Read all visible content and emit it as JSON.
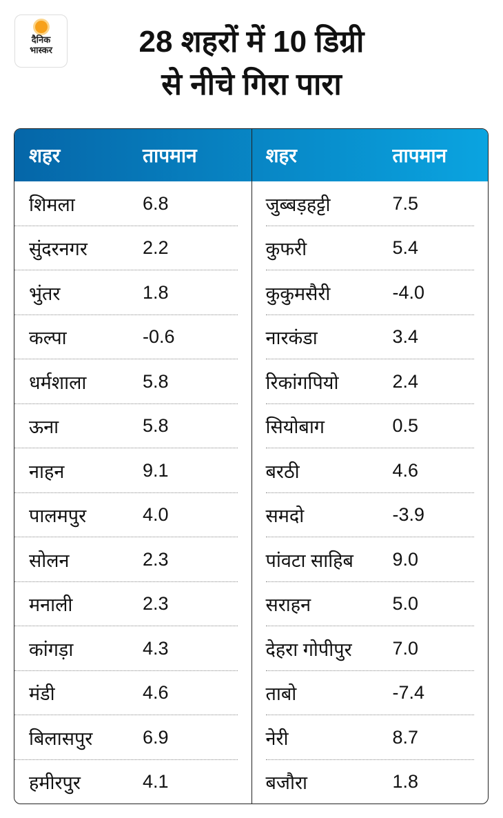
{
  "logo": {
    "line1": "दैनिक",
    "line2": "भास्कर"
  },
  "title": {
    "line1": "28 शहरों में 10 डिग्री",
    "line2": "से नीचे गिरा पारा"
  },
  "colors": {
    "header_start": "#0566a8",
    "header_end": "#0aa4e0",
    "sun": "#f7a11a"
  },
  "chart_data": {
    "type": "table",
    "columns": [
      "शहर",
      "तापमान"
    ],
    "left": [
      [
        "शिमला",
        "6.8"
      ],
      [
        "सुंदरनगर",
        "2.2"
      ],
      [
        "भुंतर",
        "1.8"
      ],
      [
        "कल्पा",
        "-0.6"
      ],
      [
        "धर्मशाला",
        "5.8"
      ],
      [
        "ऊना",
        "5.8"
      ],
      [
        "नाहन",
        "9.1"
      ],
      [
        "पालमपुर",
        "4.0"
      ],
      [
        "सोलन",
        "2.3"
      ],
      [
        "मनाली",
        "2.3"
      ],
      [
        "कांगड़ा",
        "4.3"
      ],
      [
        "मंडी",
        "4.6"
      ],
      [
        "बिलासपुर",
        "6.9"
      ],
      [
        "हमीरपुर",
        "4.1"
      ]
    ],
    "right": [
      [
        "जुब्बड़हट्टी",
        "7.5"
      ],
      [
        "कुफरी",
        "5.4"
      ],
      [
        "कुकुमसैरी",
        "-4.0"
      ],
      [
        "नारकंडा",
        "3.4"
      ],
      [
        "रिकांगपियो",
        "2.4"
      ],
      [
        "सियोबाग",
        "0.5"
      ],
      [
        "बरठी",
        "4.6"
      ],
      [
        "समदो",
        "-3.9"
      ],
      [
        "पांवटा साहिब",
        "9.0"
      ],
      [
        "सराहन",
        "5.0"
      ],
      [
        "देहरा गोपीपुर",
        "7.0"
      ],
      [
        "ताबो",
        "-7.4"
      ],
      [
        "नेरी",
        "8.7"
      ],
      [
        "बजौरा",
        "1.8"
      ]
    ]
  }
}
